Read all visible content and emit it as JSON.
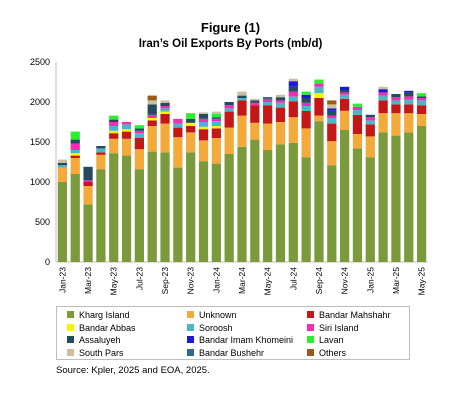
{
  "title": "Figure (1)",
  "subtitle": "Iran’s Oil Exports By Ports (mb/d)",
  "source": "Source: Kpler, 2025 and EOA, 2025.",
  "chart_data": {
    "type": "bar",
    "stacked": true,
    "ylim": [
      0,
      2500
    ],
    "yticks": [
      0,
      500,
      1000,
      1500,
      2000,
      2500
    ],
    "grid": false,
    "legend_position": "bottom",
    "categories": [
      "Jan-23",
      "Feb-23",
      "Mar-23",
      "Apr-23",
      "May-23",
      "Jun-23",
      "Jul-23",
      "Aug-23",
      "Sep-23",
      "Oct-23",
      "Nov-23",
      "Dec-23",
      "Jan-24",
      "Feb-24",
      "Mar-24",
      "Apr-24",
      "May-24",
      "Jun-24",
      "Jul-24",
      "Aug-24",
      "Sep-24",
      "Oct-24",
      "Nov-24",
      "Dec-24",
      "Jan-25",
      "Feb-25",
      "Mar-25",
      "Apr-25",
      "May-25"
    ],
    "xtick_labels": [
      "Jan-23",
      "",
      "Mar-23",
      "",
      "May-23",
      "",
      "Jul-23",
      "",
      "Sep-23",
      "",
      "Nov-23",
      "",
      "Jan-24",
      "",
      "Mar-24",
      "",
      "May-24",
      "",
      "Jul-24",
      "",
      "Sep-24",
      "",
      "Nov-24",
      "",
      "Jan-25",
      "",
      "Mar-25",
      "",
      "May-25"
    ],
    "series": [
      {
        "name": "Kharg Island",
        "color": "#7a9a3c",
        "values": [
          1000,
          1100,
          720,
          1160,
          1360,
          1330,
          1160,
          1380,
          1370,
          1180,
          1370,
          1260,
          1230,
          1350,
          1440,
          1530,
          1400,
          1470,
          1490,
          1310,
          1760,
          1210,
          1650,
          1420,
          1310,
          1620,
          1580,
          1620,
          1700
        ]
      },
      {
        "name": "Unknown",
        "color": "#f4a93b",
        "values": [
          180,
          200,
          230,
          180,
          180,
          210,
          250,
          320,
          360,
          380,
          250,
          260,
          320,
          330,
          390,
          210,
          330,
          280,
          320,
          360,
          70,
          300,
          240,
          180,
          260,
          240,
          280,
          240,
          150
        ]
      },
      {
        "name": "Bandar Mahshahr",
        "color": "#c41717",
        "values": [
          0,
          30,
          50,
          30,
          70,
          90,
          140,
          70,
          120,
          120,
          80,
          140,
          120,
          200,
          190,
          220,
          230,
          180,
          200,
          220,
          220,
          220,
          150,
          240,
          150,
          160,
          110,
          110,
          110
        ]
      },
      {
        "name": "Bandar Abbas",
        "color": "#f5f500",
        "values": [
          0,
          30,
          0,
          0,
          30,
          30,
          0,
          30,
          30,
          0,
          40,
          30,
          30,
          0,
          0,
          0,
          0,
          0,
          0,
          0,
          60,
          0,
          0,
          0,
          0,
          0,
          0,
          0,
          0
        ]
      },
      {
        "name": "Soroosh",
        "color": "#4bb6c5",
        "values": [
          30,
          40,
          0,
          50,
          60,
          60,
          60,
          0,
          40,
          50,
          0,
          60,
          60,
          40,
          30,
          0,
          40,
          60,
          60,
          60,
          80,
          70,
          50,
          60,
          50,
          60,
          50,
          60,
          60
        ]
      },
      {
        "name": "Siri Island",
        "color": "#f22fb2",
        "values": [
          0,
          80,
          20,
          0,
          50,
          30,
          30,
          40,
          30,
          60,
          0,
          40,
          30,
          40,
          0,
          30,
          40,
          30,
          60,
          40,
          40,
          30,
          30,
          40,
          40,
          40,
          40,
          40,
          30
        ]
      },
      {
        "name": "Assaluyeh",
        "color": "#244a5e",
        "values": [
          30,
          50,
          170,
          30,
          30,
          0,
          30,
          130,
          40,
          0,
          50,
          60,
          20,
          40,
          30,
          30,
          20,
          40,
          60,
          60,
          0,
          60,
          30,
          0,
          30,
          0,
          40,
          50,
          20
        ]
      },
      {
        "name": "Bandar Imam Khomeini",
        "color": "#1a1ad4",
        "values": [
          0,
          0,
          0,
          0,
          0,
          0,
          0,
          0,
          0,
          0,
          0,
          0,
          0,
          0,
          0,
          0,
          0,
          0,
          70,
          40,
          0,
          30,
          40,
          0,
          0,
          40,
          0,
          20,
          0
        ]
      },
      {
        "name": "Lavan",
        "color": "#2eed2e",
        "values": [
          0,
          100,
          0,
          0,
          50,
          0,
          40,
          0,
          0,
          0,
          70,
          0,
          40,
          0,
          0,
          0,
          0,
          0,
          0,
          40,
          50,
          0,
          0,
          40,
          0,
          0,
          0,
          0,
          40
        ]
      },
      {
        "name": "South Pars",
        "color": "#cbbf9f",
        "values": [
          40,
          0,
          0,
          0,
          0,
          0,
          0,
          50,
          30,
          0,
          0,
          20,
          30,
          0,
          50,
          20,
          0,
          30,
          30,
          0,
          0,
          50,
          0,
          0,
          0,
          30,
          0,
          0,
          0
        ]
      },
      {
        "name": "Bandar Bushehr",
        "color": "#2c6e8a",
        "values": [
          0,
          0,
          0,
          0,
          0,
          0,
          0,
          0,
          0,
          0,
          0,
          0,
          0,
          0,
          0,
          0,
          0,
          0,
          0,
          0,
          0,
          0,
          0,
          0,
          0,
          0,
          0,
          0,
          0
        ]
      },
      {
        "name": "Others",
        "color": "#9c5a1a",
        "values": [
          0,
          0,
          0,
          0,
          0,
          0,
          0,
          60,
          0,
          0,
          0,
          0,
          0,
          0,
          0,
          0,
          0,
          0,
          0,
          0,
          0,
          50,
          0,
          0,
          0,
          0,
          0,
          0,
          0
        ]
      }
    ]
  }
}
